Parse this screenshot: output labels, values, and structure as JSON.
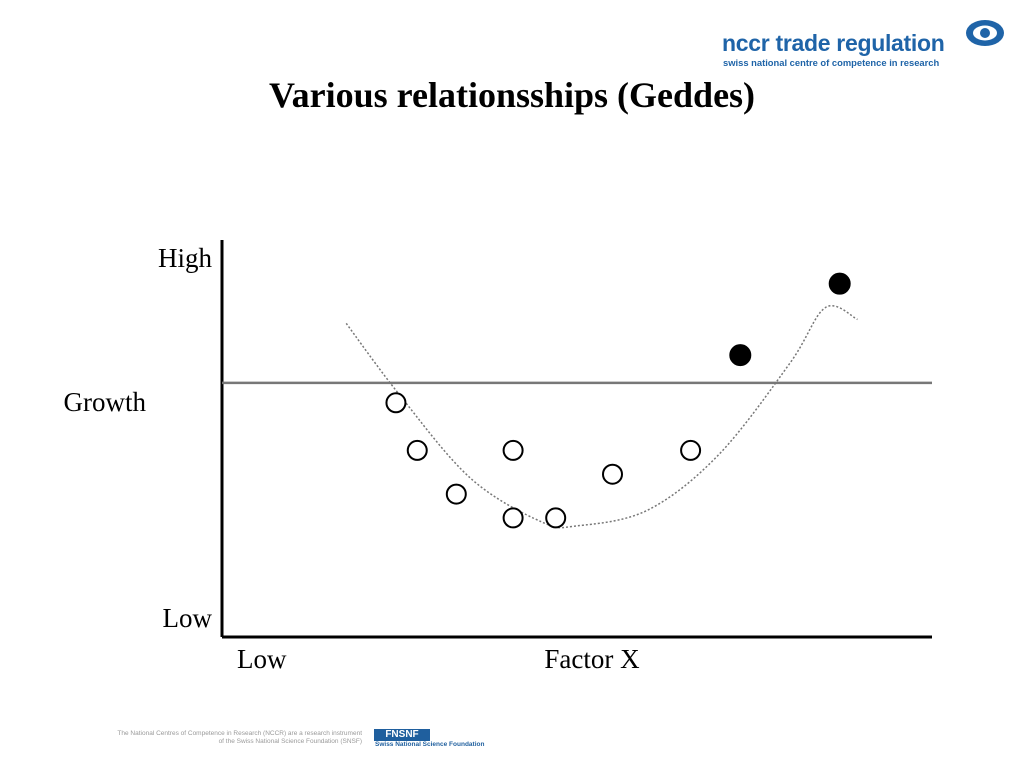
{
  "header": {
    "logo_main": "nccr trade regulation",
    "logo_sub": "swiss national centre of competence in research"
  },
  "title": "Various relationsships (Geddes)",
  "chart_data": {
    "type": "scatter",
    "title": "Various relationsships (Geddes)",
    "ylabel": "Growth",
    "xlabel": "Factor X",
    "y_tick_labels": {
      "high": "High",
      "low": "Low"
    },
    "x_tick_labels": {
      "low": "Low"
    },
    "xlim": [
      0,
      10
    ],
    "ylim": [
      0,
      10
    ],
    "reference_line_y": 6.4,
    "trend_curve": {
      "style": "dotted",
      "shape": "u-shaped",
      "x": [
        1.75,
        2.5,
        3.5,
        4.5,
        5.0,
        6.0,
        7.0,
        8.0,
        8.5,
        8.95
      ],
      "y": [
        7.9,
        6.1,
        4.0,
        2.9,
        2.8,
        3.2,
        4.6,
        6.9,
        8.3,
        8.0
      ]
    },
    "series": [
      {
        "name": "",
        "marker": "open-circle",
        "points": [
          {
            "x": 2.45,
            "y": 5.9
          },
          {
            "x": 2.75,
            "y": 4.7
          },
          {
            "x": 3.3,
            "y": 3.6
          },
          {
            "x": 4.1,
            "y": 4.7
          },
          {
            "x": 4.1,
            "y": 3.0
          },
          {
            "x": 4.7,
            "y": 3.0
          },
          {
            "x": 5.5,
            "y": 4.1
          },
          {
            "x": 6.6,
            "y": 4.7
          }
        ]
      },
      {
        "name": "",
        "marker": "filled-circle",
        "points": [
          {
            "x": 7.3,
            "y": 7.1
          },
          {
            "x": 8.7,
            "y": 8.9
          }
        ]
      }
    ]
  },
  "footer": {
    "note_line1": "The National Centres of Competence in Research (NCCR) are a research instrument",
    "note_line2": "of the Swiss National Science Foundation (SNSF)",
    "fn_logo": "FNSNF",
    "fn_sub": "Swiss National Science Foundation"
  }
}
